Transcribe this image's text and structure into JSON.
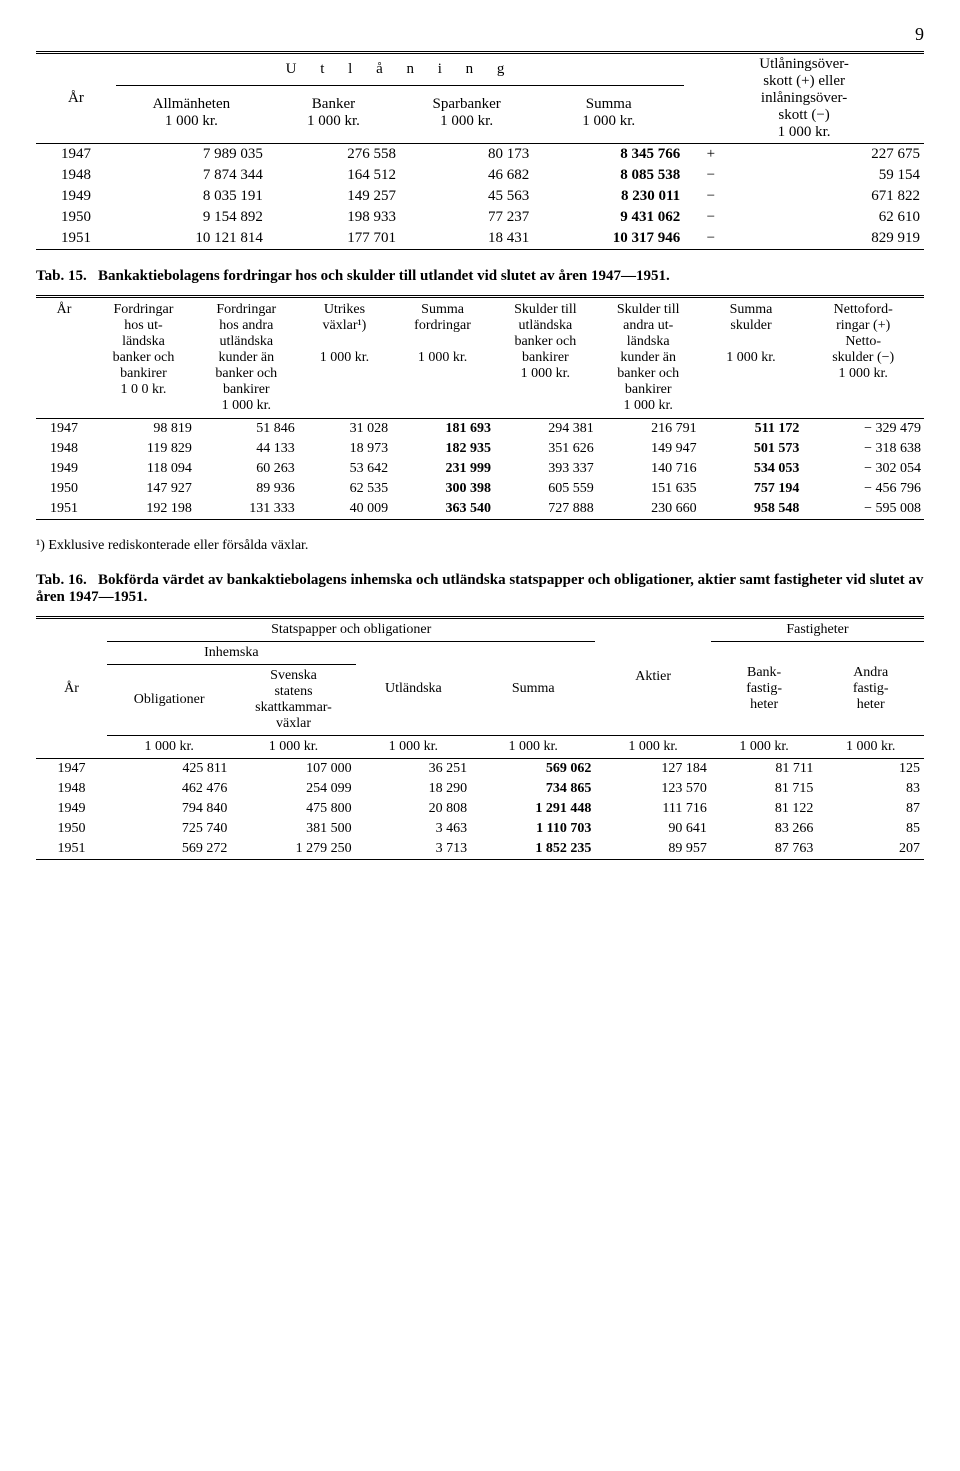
{
  "page_number": "9",
  "table14": {
    "headers": {
      "year": "År",
      "utlaning": "U t l å n i n g",
      "allman": "Allmänheten",
      "banker": "Banker",
      "sparbanker": "Sparbanker",
      "summa": "Summa",
      "overskott_l1": "Utlåningsöver-",
      "overskott_l2": "skott (+) eller",
      "overskott_l3": "inlåningsöver-",
      "overskott_l4": "skott (−)",
      "unit": "1 000 kr."
    },
    "rows": [
      {
        "year": "1947",
        "allman": "7 989 035",
        "banker": "276 558",
        "sparb": "80 173",
        "summa": "8 345 766",
        "sign": "+",
        "ov": "227 675"
      },
      {
        "year": "1948",
        "allman": "7 874 344",
        "banker": "164 512",
        "sparb": "46 682",
        "summa": "8 085 538",
        "sign": "−",
        "ov": "59 154"
      },
      {
        "year": "1949",
        "allman": "8 035 191",
        "banker": "149 257",
        "sparb": "45 563",
        "summa": "8 230 011",
        "sign": "−",
        "ov": "671 822"
      },
      {
        "year": "1950",
        "allman": "9 154 892",
        "banker": "198 933",
        "sparb": "77 237",
        "summa": "9 431 062",
        "sign": "−",
        "ov": "62 610"
      },
      {
        "year": "1951",
        "allman": "10 121 814",
        "banker": "177 701",
        "sparb": "18 431",
        "summa": "10 317 946",
        "sign": "−",
        "ov": "829 919"
      }
    ]
  },
  "tab15": {
    "caption_no": "Tab. 15.",
    "caption": "Bankaktiebolagens fordringar hos och skulder till utlandet vid slutet av åren 1947—1951.",
    "headers": {
      "year": "År",
      "c1_l1": "Fordringar",
      "c1_l2": "hos ut-",
      "c1_l3": "ländska",
      "c1_l4": "banker och",
      "c1_l5": "bankirer",
      "c2_l1": "Fordringar",
      "c2_l2": "hos andra",
      "c2_l3": "utländska",
      "c2_l4": "kunder än",
      "c2_l5": "banker och",
      "c2_l6": "bankirer",
      "c3_l1": "Utrikes",
      "c3_l2": "växlar¹)",
      "c4_l1": "Summa",
      "c4_l2": "fordringar",
      "c5_l1": "Skulder till",
      "c5_l2": "utländska",
      "c5_l3": "banker och",
      "c5_l4": "bankirer",
      "c6_l1": "Skulder till",
      "c6_l2": "andra ut-",
      "c6_l3": "ländska",
      "c6_l4": "kunder än",
      "c6_l5": "banker och",
      "c6_l6": "bankirer",
      "c7_l1": "Summa",
      "c7_l2": "skulder",
      "c8_l1": "Nettoford-",
      "c8_l2": "ringar (+)",
      "c8_l3": "Netto-",
      "c8_l4": "skulder (−)",
      "unit_a": "1 0 0 kr.",
      "unit": "1 000 kr."
    },
    "rows": [
      {
        "year": "1947",
        "c1": "98 819",
        "c2": "51 846",
        "c3": "31 028",
        "c4": "181 693",
        "c5": "294 381",
        "c6": "216 791",
        "c7": "511 172",
        "c8": "− 329 479"
      },
      {
        "year": "1948",
        "c1": "119 829",
        "c2": "44 133",
        "c3": "18 973",
        "c4": "182 935",
        "c5": "351 626",
        "c6": "149 947",
        "c7": "501 573",
        "c8": "− 318 638"
      },
      {
        "year": "1949",
        "c1": "118 094",
        "c2": "60 263",
        "c3": "53 642",
        "c4": "231 999",
        "c5": "393 337",
        "c6": "140 716",
        "c7": "534 053",
        "c8": "− 302 054"
      },
      {
        "year": "1950",
        "c1": "147 927",
        "c2": "89 936",
        "c3": "62 535",
        "c4": "300 398",
        "c5": "605 559",
        "c6": "151 635",
        "c7": "757 194",
        "c8": "− 456 796"
      },
      {
        "year": "1951",
        "c1": "192 198",
        "c2": "131 333",
        "c3": "40 009",
        "c4": "363 540",
        "c5": "727 888",
        "c6": "230 660",
        "c7": "958 548",
        "c8": "− 595 008"
      }
    ],
    "footnote": "¹) Exklusive rediskonterade eller försålda växlar."
  },
  "tab16": {
    "caption_no": "Tab. 16.",
    "caption": "Bokförda värdet av bankaktiebolagens inhemska och utländska statspapper och obligationer, aktier samt fastigheter vid slutet av åren 1947—1951.",
    "headers": {
      "stats": "Statspapper och obligationer",
      "fastig": "Fastigheter",
      "inhemska": "Inhemska",
      "year": "År",
      "oblig": "Obligationer",
      "skatt_l1": "Svenska",
      "skatt_l2": "statens",
      "skatt_l3": "skattkammar-",
      "skatt_l4": "växlar",
      "utl": "Utländska",
      "summa": "Summa",
      "aktier": "Aktier",
      "bank_l1": "Bank-",
      "bank_l2": "fastig-",
      "bank_l3": "heter",
      "andra_l1": "Andra",
      "andra_l2": "fastig-",
      "andra_l3": "heter",
      "unit": "1 000 kr."
    },
    "rows": [
      {
        "year": "1947",
        "c1": "425 811",
        "c2": "107 000",
        "c3": "36 251",
        "c4": "569 062",
        "c5": "127 184",
        "c6": "81 711",
        "c7": "125"
      },
      {
        "year": "1948",
        "c1": "462 476",
        "c2": "254 099",
        "c3": "18 290",
        "c4": "734 865",
        "c5": "123 570",
        "c6": "81 715",
        "c7": "83"
      },
      {
        "year": "1949",
        "c1": "794 840",
        "c2": "475 800",
        "c3": "20 808",
        "c4": "1 291 448",
        "c5": "111 716",
        "c6": "81 122",
        "c7": "87"
      },
      {
        "year": "1950",
        "c1": "725 740",
        "c2": "381 500",
        "c3": "3 463",
        "c4": "1 110 703",
        "c5": "90 641",
        "c6": "83 266",
        "c7": "85"
      },
      {
        "year": "1951",
        "c1": "569 272",
        "c2": "1 279 250",
        "c3": "3 713",
        "c4": "1 852 235",
        "c5": "89 957",
        "c6": "87 763",
        "c7": "207"
      }
    ]
  }
}
